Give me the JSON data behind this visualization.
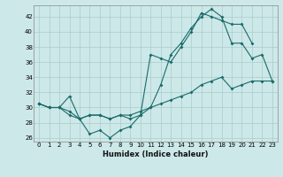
{
  "xlabel": "Humidex (Indice chaleur)",
  "ylabel": "",
  "xlim": [
    -0.5,
    23.5
  ],
  "ylim": [
    25.5,
    43.5
  ],
  "xticks": [
    0,
    1,
    2,
    3,
    4,
    5,
    6,
    7,
    8,
    9,
    10,
    11,
    12,
    13,
    14,
    15,
    16,
    17,
    18,
    19,
    20,
    21,
    22,
    23
  ],
  "yticks": [
    26,
    28,
    30,
    32,
    34,
    36,
    38,
    40,
    42
  ],
  "background_color": "#cde8e8",
  "grid_color": "#aacccc",
  "line_color": "#1a6b6b",
  "line1_x": [
    0,
    1,
    2,
    3,
    4,
    5,
    6,
    7,
    8,
    9,
    10,
    11,
    12,
    13,
    14,
    15,
    16,
    17,
    18,
    19,
    20,
    21,
    22,
    23
  ],
  "line1_y": [
    30.5,
    30.0,
    30.0,
    29.0,
    28.5,
    26.5,
    27.0,
    26.0,
    27.0,
    27.5,
    29.0,
    30.0,
    33.0,
    37.0,
    38.5,
    40.5,
    42.0,
    43.0,
    42.0,
    38.5,
    38.5,
    36.5,
    37.0,
    33.5
  ],
  "line2_x": [
    0,
    1,
    2,
    3,
    4,
    5,
    6,
    7,
    8,
    9,
    10,
    11,
    12,
    13,
    14,
    15,
    16,
    17,
    18,
    19,
    20,
    21,
    22,
    23
  ],
  "line2_y": [
    30.5,
    30.0,
    30.0,
    31.5,
    28.5,
    29.0,
    29.0,
    28.5,
    29.0,
    28.5,
    29.0,
    37.0,
    36.5,
    36.0,
    38.0,
    40.0,
    42.5,
    42.0,
    41.5,
    41.0,
    41.0,
    38.5,
    null,
    null
  ],
  "line3_x": [
    0,
    1,
    2,
    3,
    4,
    5,
    6,
    7,
    8,
    9,
    10,
    11,
    12,
    13,
    14,
    15,
    16,
    17,
    18,
    19,
    20,
    21,
    22,
    23
  ],
  "line3_y": [
    30.5,
    30.0,
    30.0,
    29.5,
    28.5,
    29.0,
    29.0,
    28.5,
    29.0,
    29.0,
    29.5,
    30.0,
    30.5,
    31.0,
    31.5,
    32.0,
    33.0,
    33.5,
    34.0,
    32.5,
    33.0,
    33.5,
    33.5,
    33.5
  ]
}
